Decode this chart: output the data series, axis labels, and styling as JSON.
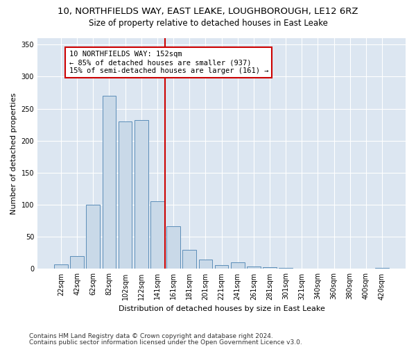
{
  "title1": "10, NORTHFIELDS WAY, EAST LEAKE, LOUGHBOROUGH, LE12 6RZ",
  "title2": "Size of property relative to detached houses in East Leake",
  "xlabel": "Distribution of detached houses by size in East Leake",
  "ylabel": "Number of detached properties",
  "bar_labels": [
    "22sqm",
    "42sqm",
    "62sqm",
    "82sqm",
    "102sqm",
    "122sqm",
    "141sqm",
    "161sqm",
    "181sqm",
    "201sqm",
    "221sqm",
    "241sqm",
    "261sqm",
    "281sqm",
    "301sqm",
    "321sqm",
    "340sqm",
    "360sqm",
    "380sqm",
    "400sqm",
    "420sqm"
  ],
  "bar_values": [
    7,
    20,
    100,
    270,
    230,
    232,
    105,
    67,
    30,
    15,
    6,
    10,
    4,
    3,
    2,
    0,
    0,
    0,
    0,
    0,
    2
  ],
  "bar_color": "#c9d9e8",
  "bar_edge_color": "#5b8db8",
  "vline_color": "#cc0000",
  "annotation_text": "10 NORTHFIELDS WAY: 152sqm\n← 85% of detached houses are smaller (937)\n15% of semi-detached houses are larger (161) →",
  "annotation_box_color": "#ffffff",
  "annotation_box_edge": "#cc0000",
  "ylim": [
    0,
    360
  ],
  "yticks": [
    0,
    50,
    100,
    150,
    200,
    250,
    300,
    350
  ],
  "plot_bg_color": "#dce6f1",
  "footer1": "Contains HM Land Registry data © Crown copyright and database right 2024.",
  "footer2": "Contains public sector information licensed under the Open Government Licence v3.0.",
  "title1_fontsize": 9.5,
  "title2_fontsize": 8.5,
  "xlabel_fontsize": 8,
  "ylabel_fontsize": 8,
  "tick_fontsize": 7,
  "annotation_fontsize": 7.5,
  "footer_fontsize": 6.5
}
